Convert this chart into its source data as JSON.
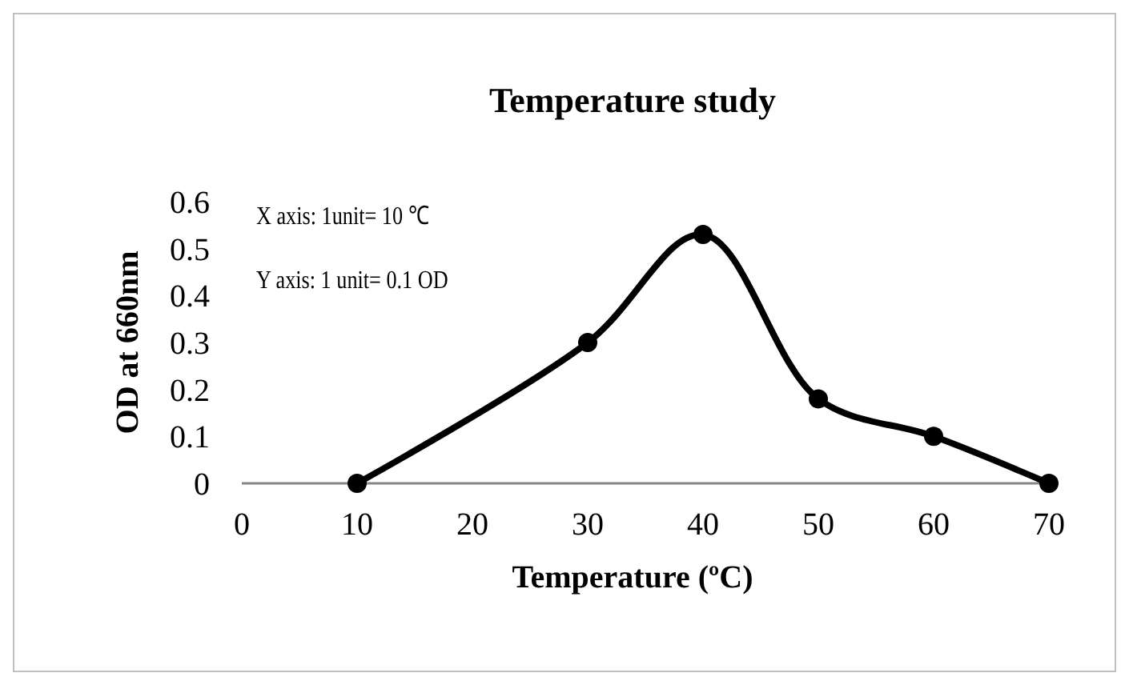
{
  "chart_data": {
    "type": "line",
    "title": "Temperature study",
    "xlabel": "Temperature (ºC)",
    "ylabel": "OD at 660nm",
    "x": [
      10,
      30,
      40,
      50,
      60,
      70
    ],
    "series": [
      {
        "color": "#000000",
        "values": [
          0,
          0.3,
          0.53,
          0.18,
          0.1,
          0
        ]
      }
    ],
    "xlim": [
      0,
      70
    ],
    "xticks": [
      0,
      10,
      20,
      30,
      40,
      50,
      60,
      70
    ],
    "ylim": [
      0,
      0.6
    ],
    "yticks": [
      0,
      0.1,
      0.2,
      0.3,
      0.4,
      0.5,
      0.6
    ],
    "grid": false,
    "marker": "circle",
    "line_style": "solid",
    "annotations": [
      "X axis: 1unit= 10 ℃",
      "Y axis: 1 unit= 0.1 OD"
    ]
  }
}
